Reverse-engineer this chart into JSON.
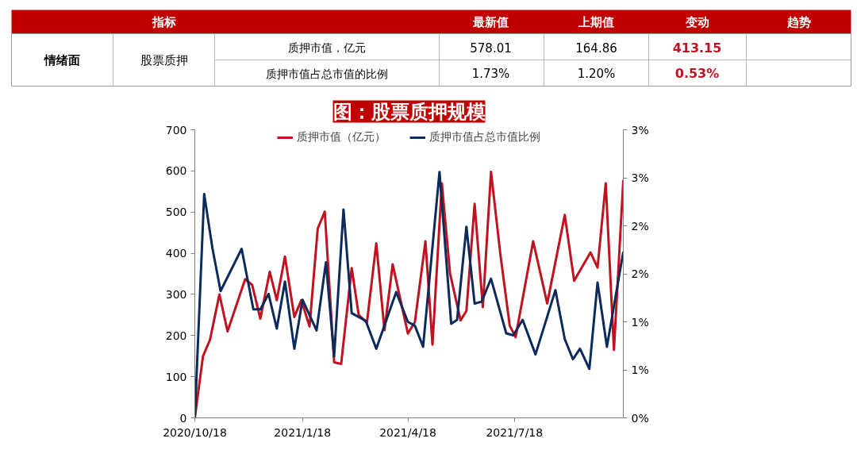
{
  "chart_data": [
    {
      "type": "other",
      "annotations": [
        "指标",
        "最新值",
        "上期值",
        "变动",
        "趋势",
        "情绪面",
        "股票质押",
        "质押市值，亿元",
        "578.01",
        "164.86",
        "413.15",
        "质押市值占总市值的比例",
        "1.73%",
        "1.20%",
        "0.53%"
      ]
    },
    {
      "type": "line",
      "title": "图：股票质押规模",
      "legend": "top",
      "grid": false,
      "xlim": [
        "2020-10-18",
        "2021-10-19"
      ],
      "xticks": [
        {
          "value": "2020-10-18",
          "label": "2020/10/18"
        },
        {
          "value": "2021-01-18",
          "label": "2021/1/18"
        },
        {
          "value": "2021-04-18",
          "label": "2021/4/18"
        },
        {
          "value": "2021-07-18",
          "label": "2021/7/18"
        }
      ],
      "ylim": [
        0,
        700
      ],
      "yticks": [
        0,
        100,
        200,
        300,
        400,
        500,
        600,
        700
      ],
      "y2lim": [
        0,
        3
      ],
      "y2ticks": [
        {
          "value": 0,
          "label": "0%"
        },
        {
          "value": 0.5,
          "label": "1%"
        },
        {
          "value": 1,
          "label": "1%"
        },
        {
          "value": 1.5,
          "label": "2%"
        },
        {
          "value": 2,
          "label": "2%"
        },
        {
          "value": 2.5,
          "label": "3%"
        },
        {
          "value": 3,
          "label": "3%"
        }
      ],
      "series": [
        {
          "name": "质押市值（亿元）",
          "color": "#c0121f",
          "x": [
            "2020-10-18",
            "2020-10-25",
            "2020-10-31",
            "2020-11-08",
            "2020-11-15",
            "2020-11-30",
            "2020-12-06",
            "2020-12-13",
            "2020-12-21",
            "2020-12-27",
            "2021-01-03",
            "2021-01-11",
            "2021-01-17",
            "2021-01-24",
            "2021-01-31",
            "2021-02-06",
            "2021-02-14",
            "2021-02-20",
            "2021-03-01",
            "2021-03-07",
            "2021-03-14",
            "2021-03-22",
            "2021-03-29",
            "2021-04-05",
            "2021-04-18",
            "2021-04-24",
            "2021-05-03",
            "2021-05-09",
            "2021-05-17",
            "2021-05-24",
            "2021-06-02",
            "2021-06-07",
            "2021-06-14",
            "2021-06-21",
            "2021-06-28",
            "2021-07-06",
            "2021-07-14",
            "2021-07-19",
            "2021-08-03",
            "2021-08-15",
            "2021-08-30",
            "2021-09-07",
            "2021-09-21",
            "2021-09-27",
            "2021-10-04",
            "2021-10-11",
            "2021-10-19"
          ],
          "values": [
            0,
            150,
            190,
            300,
            210,
            337,
            323,
            241,
            355,
            286,
            392,
            245,
            286,
            222,
            460,
            501,
            135,
            131,
            364,
            250,
            231,
            424,
            213,
            373,
            205,
            233,
            429,
            178,
            570,
            351,
            237,
            260,
            520,
            269,
            598,
            397,
            224,
            196,
            429,
            278,
            493,
            333,
            402,
            365,
            570,
            165,
            578
          ]
        },
        {
          "name": "质押市值占总市值比例",
          "color": "#0c2a5c",
          "axis": "y2",
          "x": [
            "2020-10-18",
            "2020-10-26",
            "2020-11-02",
            "2020-11-09",
            "2020-11-27",
            "2020-12-07",
            "2020-12-13",
            "2020-12-20",
            "2020-12-27",
            "2021-01-03",
            "2021-01-11",
            "2021-01-18",
            "2021-01-30",
            "2021-02-07",
            "2021-02-14",
            "2021-02-22",
            "2021-03-01",
            "2021-03-13",
            "2021-03-22",
            "2021-04-08",
            "2021-04-18",
            "2021-04-24",
            "2021-05-01",
            "2021-05-15",
            "2021-05-25",
            "2021-05-30",
            "2021-06-07",
            "2021-06-14",
            "2021-06-20",
            "2021-06-28",
            "2021-07-11",
            "2021-07-17",
            "2021-07-25",
            "2021-08-05",
            "2021-08-22",
            "2021-08-30",
            "2021-09-06",
            "2021-09-12",
            "2021-09-20",
            "2021-09-27",
            "2021-10-05",
            "2021-10-19"
          ],
          "values": [
            0,
            2.33,
            1.77,
            1.32,
            1.76,
            1.13,
            1.13,
            1.29,
            0.93,
            1.42,
            0.72,
            1.23,
            0.91,
            1.62,
            0.64,
            2.17,
            1.09,
            1.01,
            0.72,
            1.31,
            1.0,
            0.96,
            0.74,
            2.56,
            0.98,
            1.02,
            1.99,
            1.19,
            1.21,
            1.45,
            0.88,
            0.86,
            1.02,
            0.66,
            1.33,
            0.82,
            0.61,
            0.72,
            0.51,
            1.41,
            0.74,
            1.73
          ]
        }
      ]
    }
  ]
}
